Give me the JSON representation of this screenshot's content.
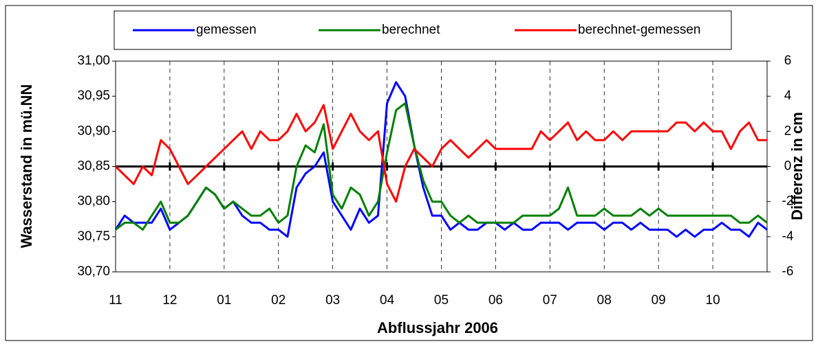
{
  "chart_data": {
    "type": "line",
    "xlabel": "Abflussjahr 2006",
    "ylabel": "Wasserstand in mü.NN",
    "y2label": "Differenz in cm",
    "categories": [
      "11",
      null,
      null,
      null,
      null,
      null,
      "12",
      null,
      null,
      null,
      null,
      null,
      "01",
      null,
      null,
      null,
      null,
      null,
      "02",
      null,
      null,
      null,
      null,
      null,
      "03",
      null,
      null,
      null,
      null,
      null,
      "04",
      null,
      null,
      null,
      null,
      null,
      "05",
      null,
      null,
      null,
      null,
      null,
      "06",
      null,
      null,
      null,
      null,
      null,
      "07",
      null,
      null,
      null,
      null,
      null,
      "08",
      null,
      null,
      null,
      null,
      null,
      "09",
      null,
      null,
      null,
      null,
      null,
      "10",
      null,
      null,
      null,
      null,
      null,
      null
    ],
    "ylim": [
      30.7,
      31.0
    ],
    "yticks": [
      {
        "value": 30.7,
        "label": "30,70"
      },
      {
        "value": 30.75,
        "label": "30,75"
      },
      {
        "value": 30.8,
        "label": "30,80"
      },
      {
        "value": 30.85,
        "label": "30,85"
      },
      {
        "value": 30.9,
        "label": "30,90"
      },
      {
        "value": 30.95,
        "label": "30,95"
      },
      {
        "value": 31.0,
        "label": "31,00"
      }
    ],
    "y2lim": [
      -6,
      6
    ],
    "y2ticks": [
      -6,
      -4,
      -2,
      0,
      2,
      4,
      6
    ],
    "grid": "x-dashed",
    "zero_line_y2": true,
    "legend": "top",
    "series": [
      {
        "name": "gemessen",
        "color": "#0000ff",
        "values": [
          30.76,
          30.78,
          30.77,
          30.77,
          30.77,
          30.79,
          30.76,
          30.77,
          30.78,
          30.8,
          30.82,
          30.81,
          30.79,
          30.8,
          30.78,
          30.77,
          30.77,
          30.76,
          30.76,
          30.75,
          30.82,
          30.84,
          30.85,
          30.87,
          30.8,
          30.78,
          30.76,
          30.79,
          30.77,
          30.78,
          30.94,
          30.97,
          30.95,
          30.88,
          30.82,
          30.78,
          30.78,
          30.76,
          30.77,
          30.76,
          30.76,
          30.77,
          30.77,
          30.76,
          30.77,
          30.76,
          30.76,
          30.77,
          30.77,
          30.77,
          30.76,
          30.77,
          30.77,
          30.77,
          30.76,
          30.77,
          30.77,
          30.76,
          30.77,
          30.76,
          30.76,
          30.76,
          30.75,
          30.76,
          30.75,
          30.76,
          30.76,
          30.77,
          30.76,
          30.76,
          30.75,
          30.77,
          30.76
        ]
      },
      {
        "name": "berechnet",
        "color": "#008000",
        "values": [
          30.76,
          30.77,
          30.77,
          30.76,
          30.78,
          30.8,
          30.77,
          30.77,
          30.78,
          30.8,
          30.82,
          30.81,
          30.79,
          30.8,
          30.79,
          30.78,
          30.78,
          30.79,
          30.77,
          30.78,
          30.85,
          30.88,
          30.87,
          30.91,
          30.81,
          30.79,
          30.82,
          30.81,
          30.78,
          30.8,
          30.87,
          30.93,
          30.94,
          30.88,
          30.83,
          30.8,
          30.8,
          30.78,
          30.77,
          30.78,
          30.77,
          30.77,
          30.77,
          30.77,
          30.77,
          30.78,
          30.78,
          30.78,
          30.78,
          30.79,
          30.82,
          30.78,
          30.78,
          30.78,
          30.79,
          30.78,
          30.78,
          30.78,
          30.79,
          30.78,
          30.79,
          30.78,
          30.78,
          30.78,
          30.78,
          30.78,
          30.78,
          30.78,
          30.78,
          30.77,
          30.77,
          30.78,
          30.77
        ]
      },
      {
        "name": "berechnet-gemessen",
        "color": "#ff0000",
        "axis": "y2",
        "values": [
          0,
          -0.5,
          -1,
          0,
          -0.5,
          1.5,
          1,
          0,
          -1,
          -0.5,
          0,
          0.5,
          1,
          1.5,
          2,
          1,
          2,
          1.5,
          1.5,
          2,
          3,
          2,
          2.5,
          3.5,
          1,
          2,
          3,
          2,
          1.5,
          2,
          -1,
          -2,
          0,
          1,
          0.5,
          0,
          1,
          1.5,
          1,
          0.5,
          1,
          1.5,
          1,
          1,
          1,
          1,
          1,
          2,
          1.5,
          2,
          2.5,
          1.5,
          2,
          1.5,
          1.5,
          2,
          1.5,
          2,
          2,
          2,
          2,
          2,
          2.5,
          2.5,
          2,
          2.5,
          2,
          2,
          1,
          2,
          2.5,
          1.5,
          1.5
        ]
      }
    ]
  }
}
